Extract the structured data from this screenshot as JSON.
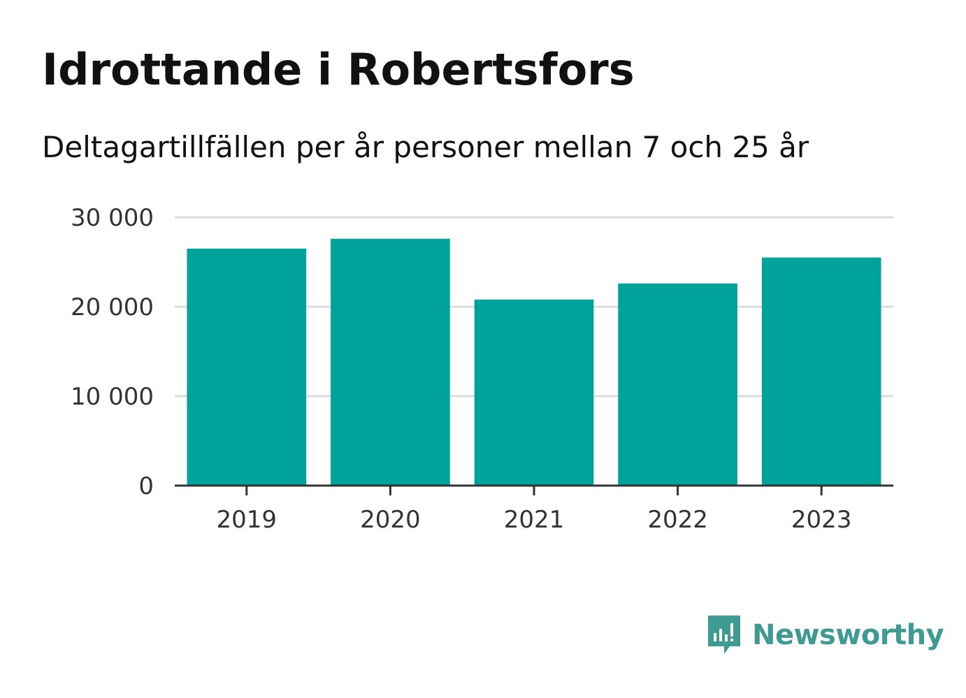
{
  "title": "Idrottande i Robertsfors",
  "subtitle": "Deltagartillfällen per år personer mellan 7 och 25 år",
  "brand": {
    "name": "Newsworthy",
    "color": "#3f9a93",
    "icon": "newsworthy-logo-icon"
  },
  "chart_data": {
    "type": "bar",
    "categories": [
      "2019",
      "2020",
      "2021",
      "2022",
      "2023"
    ],
    "values": [
      26500,
      27600,
      20800,
      22600,
      25500
    ],
    "ylim": [
      0,
      30000
    ],
    "yticks": [
      0,
      10000,
      20000,
      30000
    ],
    "ytick_labels": [
      "0",
      "10 000",
      "20 000",
      "30 000"
    ],
    "bar_color": "#00a39a",
    "grid": true
  }
}
